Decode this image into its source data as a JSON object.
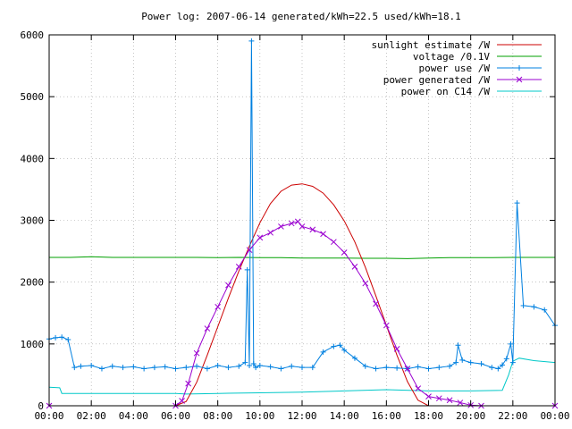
{
  "chart_data": {
    "type": "line",
    "title": "Power log: 2007-06-14 generated/kWh=22.5 used/kWh=18.1",
    "xlabel": "",
    "ylabel": "",
    "xlim": [
      0,
      24
    ],
    "ylim": [
      0,
      6000
    ],
    "x_tick_labels": [
      "00:00",
      "02:00",
      "04:00",
      "06:00",
      "08:00",
      "10:00",
      "12:00",
      "14:00",
      "16:00",
      "18:00",
      "20:00",
      "22:00",
      "00:00"
    ],
    "y_tick_labels": [
      "0",
      "1000",
      "2000",
      "3000",
      "4000",
      "5000",
      "6000"
    ],
    "grid": true,
    "legend_position": "top-right",
    "series": [
      {
        "name": "sunlight estimate /W",
        "color": "#cc0000",
        "marker": "none",
        "x": [
          0,
          6,
          6.5,
          7,
          7.5,
          8,
          8.5,
          9,
          9.5,
          10,
          10.5,
          11,
          11.5,
          12,
          12.5,
          13,
          13.5,
          14,
          14.5,
          15,
          15.5,
          16,
          16.5,
          17,
          17.5,
          18,
          24
        ],
        "y": [
          0,
          0,
          70,
          380,
          820,
          1280,
          1740,
          2180,
          2580,
          2960,
          3270,
          3470,
          3570,
          3590,
          3550,
          3440,
          3250,
          2990,
          2650,
          2240,
          1780,
          1300,
          820,
          390,
          90,
          0,
          0
        ]
      },
      {
        "name": "voltage /0.1V",
        "color": "#00a000",
        "marker": "none",
        "x": [
          0,
          1,
          2,
          3,
          4,
          5,
          6,
          7,
          8,
          9,
          10,
          11,
          12,
          13,
          14,
          15,
          16,
          17,
          18,
          19,
          20,
          21,
          22,
          23,
          24
        ],
        "y": [
          2400,
          2400,
          2410,
          2400,
          2400,
          2400,
          2400,
          2400,
          2395,
          2400,
          2395,
          2395,
          2390,
          2390,
          2390,
          2385,
          2385,
          2380,
          2390,
          2395,
          2395,
          2395,
          2400,
          2400,
          2400
        ]
      },
      {
        "name": "power use /W",
        "color": "#0080e0",
        "marker": "plus",
        "x": [
          0,
          0.3,
          0.6,
          0.9,
          1.2,
          1.5,
          2,
          2.5,
          3,
          3.5,
          4,
          4.5,
          5,
          5.5,
          6,
          6.5,
          7,
          7.5,
          8,
          8.5,
          9,
          9.3,
          9.4,
          9.5,
          9.6,
          9.7,
          9.8,
          10,
          10.5,
          11,
          11.5,
          12,
          12.5,
          13,
          13.5,
          13.8,
          14,
          14.5,
          15,
          15.5,
          16,
          16.5,
          17,
          17.5,
          18,
          18.5,
          19,
          19.3,
          19.4,
          19.6,
          20,
          20.5,
          21,
          21.3,
          21.5,
          21.7,
          21.9,
          22,
          22.2,
          22.5,
          23,
          23.5,
          24
        ],
        "y": [
          1080,
          1100,
          1110,
          1070,
          620,
          640,
          650,
          600,
          640,
          620,
          630,
          600,
          620,
          630,
          600,
          620,
          640,
          600,
          650,
          620,
          640,
          700,
          2200,
          650,
          5900,
          680,
          620,
          650,
          630,
          600,
          640,
          620,
          620,
          870,
          960,
          980,
          900,
          770,
          640,
          600,
          620,
          610,
          600,
          630,
          600,
          620,
          640,
          700,
          980,
          740,
          700,
          680,
          620,
          600,
          660,
          760,
          1000,
          700,
          3280,
          1620,
          1600,
          1550,
          1300
        ]
      },
      {
        "name": "power generated /W",
        "color": "#9a00d0",
        "marker": "x",
        "x": [
          0,
          6,
          6.3,
          6.6,
          7,
          7.5,
          8,
          8.5,
          9,
          9.5,
          10,
          10.5,
          11,
          11.5,
          11.8,
          12,
          12.5,
          13,
          13.5,
          14,
          14.5,
          15,
          15.5,
          16,
          16.5,
          17,
          17.5,
          18,
          18.5,
          19,
          19.5,
          20,
          20.5,
          24
        ],
        "y": [
          0,
          0,
          80,
          360,
          850,
          1250,
          1600,
          1950,
          2250,
          2520,
          2720,
          2800,
          2900,
          2950,
          2980,
          2900,
          2850,
          2780,
          2650,
          2480,
          2250,
          1980,
          1650,
          1300,
          920,
          600,
          280,
          150,
          120,
          90,
          50,
          10,
          0,
          0
        ]
      },
      {
        "name": "power on C14 /W",
        "color": "#00c8c8",
        "marker": "none",
        "x": [
          0,
          0.5,
          0.6,
          2,
          4,
          6,
          6.5,
          8,
          10,
          12,
          14,
          16,
          18,
          20,
          21.5,
          21.8,
          22,
          22.3,
          23,
          24
        ],
        "y": [
          300,
          290,
          200,
          200,
          200,
          200,
          190,
          200,
          210,
          220,
          240,
          260,
          240,
          240,
          250,
          500,
          720,
          770,
          730,
          700
        ]
      }
    ]
  }
}
